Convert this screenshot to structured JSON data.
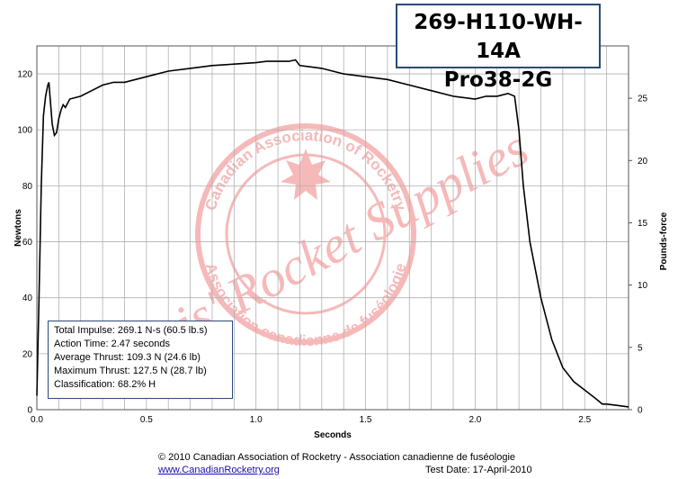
{
  "header": {
    "title_line1": "269-H110-WH-14A",
    "title_line2": "Pro38-2G"
  },
  "info": {
    "lines": [
      "Total Impulse: 269.1 N-s (60.5 lb.s)",
      "Action Time: 2.47 seconds",
      "Average Thrust: 109.3 N (24.6 lb)",
      "Maximum Thrust: 127.5 N (28.7 lb)",
      "Classification: 68.2% H"
    ]
  },
  "footer": {
    "copyright": "© 2010 Canadian Association of Rocketry - Association canadienne de fuséologie",
    "website": "www.CanadianRocketry.org",
    "test_date": "Test  Date: 17-April-2010"
  },
  "watermark": {
    "ring_top": "Canadian Association of Rocketry",
    "ring_bottom": "Association canadienne de fuséologie",
    "center": "Chris' Rocket Supplies"
  },
  "colors": {
    "line": "#000000",
    "grid": "#b0b0b0",
    "frame": "#2b4a78",
    "watermark": "#f08080"
  },
  "chart_data": {
    "type": "line",
    "title": "",
    "xlabel": "Seconds",
    "ylabel": "Newtons",
    "y2label": "Pounds-force",
    "xlim": [
      0,
      2.7
    ],
    "ylim": [
      0,
      130
    ],
    "y2lim": [
      0,
      29.2
    ],
    "xticks": [
      "0.0",
      "0.5",
      "1.0",
      "1.5",
      "2.0",
      "2.5"
    ],
    "yticks": [
      "0",
      "20",
      "40",
      "60",
      "80",
      "100",
      "120"
    ],
    "y2ticks": [
      "0",
      "5",
      "10",
      "15",
      "20",
      "25"
    ],
    "grid": true,
    "series": [
      {
        "x": [
          0,
          0.01,
          0.02,
          0.03,
          0.04,
          0.05,
          0.055,
          0.06,
          0.07,
          0.08,
          0.09,
          0.1,
          0.11,
          0.12,
          0.13,
          0.15,
          0.2,
          0.25,
          0.3,
          0.35,
          0.4,
          0.45,
          0.5,
          0.6,
          0.7,
          0.8,
          0.9,
          1.0,
          1.05,
          1.1,
          1.15,
          1.18,
          1.2,
          1.25,
          1.3,
          1.4,
          1.5,
          1.6,
          1.7,
          1.8,
          1.9,
          2.0,
          2.05,
          2.1,
          2.15,
          2.18,
          2.2,
          2.22,
          2.25,
          2.3,
          2.35,
          2.4,
          2.45,
          2.5,
          2.55,
          2.58,
          2.6,
          2.65,
          2.7
        ],
        "y": [
          5,
          40,
          80,
          105,
          112,
          116,
          117,
          112,
          102,
          98,
          99,
          104,
          107,
          109,
          108,
          111,
          112,
          114,
          116,
          117,
          117,
          118,
          119,
          121,
          122,
          123,
          123.5,
          124,
          124.5,
          124.5,
          124.5,
          125,
          123,
          122.5,
          122,
          120,
          119,
          118,
          116,
          114,
          112,
          111,
          112,
          112,
          113,
          112,
          100,
          80,
          60,
          40,
          25,
          15,
          10,
          7,
          4,
          2,
          2,
          1.5,
          1
        ]
      }
    ]
  }
}
